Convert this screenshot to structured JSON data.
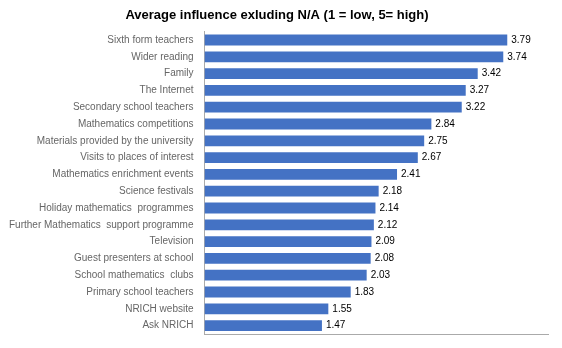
{
  "chart_data": {
    "type": "bar",
    "orientation": "horizontal",
    "title": "Average influence exluding N/A (1 = low, 5= high)",
    "categories": [
      "Ask NRICH",
      "NRICH website",
      "Primary school teachers",
      "School mathematics  clubs",
      "Guest presenters at school",
      "Television",
      "Further Mathematics  support programme",
      "Holiday mathematics  programmes",
      "Science festivals",
      "Mathematics enrichment events",
      "Visits to places of interest",
      "Materials provided by the university",
      "Mathematics competitions",
      "Secondary school teachers",
      "The Internet",
      "Family",
      "Wider reading",
      "Sixth form teachers"
    ],
    "values": [
      1.47,
      1.55,
      1.83,
      2.03,
      2.08,
      2.09,
      2.12,
      2.14,
      2.18,
      2.41,
      2.67,
      2.75,
      2.84,
      3.22,
      3.27,
      3.42,
      3.74,
      3.79
    ],
    "color": "#4472C4",
    "xlim": [
      0,
      4.3
    ],
    "grid": false,
    "data_labels": true,
    "tick_labels": "y"
  }
}
